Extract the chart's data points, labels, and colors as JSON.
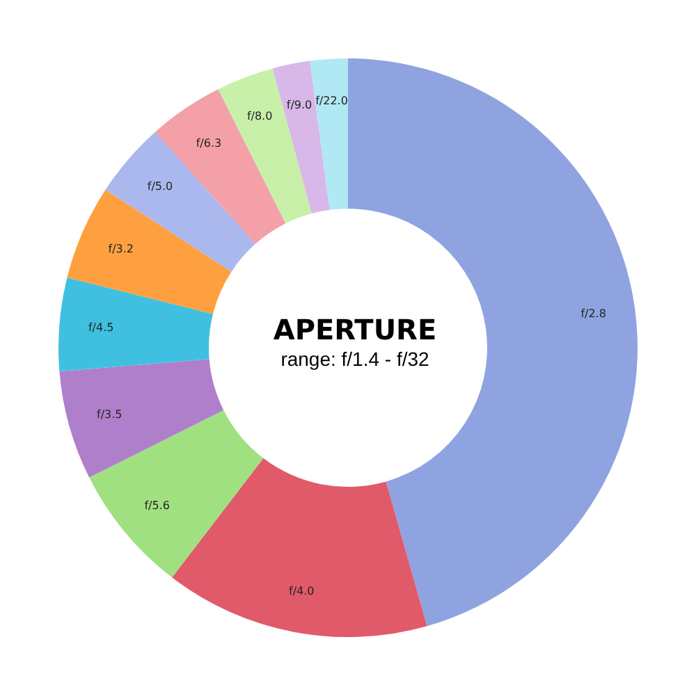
{
  "chart_data": {
    "type": "donut",
    "title": "APERTURE",
    "subtitle": "range: f/1.4 - f/32",
    "categories": [
      "f/2.8",
      "f/4.0",
      "f/5.6",
      "f/3.5",
      "f/4.5",
      "f/3.2",
      "f/5.0",
      "f/6.3",
      "f/8.0",
      "f/9.0",
      "f/22.0"
    ],
    "values": [
      45.6,
      14.8,
      7.2,
      6.1,
      5.2,
      5.3,
      4.2,
      4.2,
      3.2,
      2.1,
      2.1
    ],
    "colors": [
      "#8fa3e0",
      "#e05a6a",
      "#a0e080",
      "#b07fcc",
      "#40c0e0",
      "#ffa040",
      "#aab8ee",
      "#f4a0a8",
      "#c8f0a8",
      "#d8b8e8",
      "#b0e8f4"
    ],
    "legend": false
  }
}
